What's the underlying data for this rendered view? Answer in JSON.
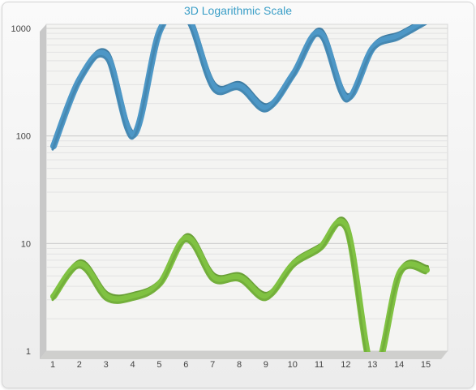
{
  "chart_data": {
    "type": "line",
    "title": "3D Logarithmic Scale",
    "x": [
      1,
      2,
      3,
      4,
      5,
      6,
      7,
      8,
      9,
      10,
      11,
      12,
      13,
      14,
      15
    ],
    "xlabel": "",
    "ylabel": "",
    "y_scale": "log",
    "ylim": [
      1,
      1000
    ],
    "y_ticks": [
      1,
      10,
      100,
      1000
    ],
    "grid": true,
    "style": "3d-ribbon",
    "series": [
      {
        "color": "#4d97c6",
        "values": [
          75,
          320,
          520,
          95,
          900,
          1200,
          270,
          270,
          170,
          350,
          850,
          210,
          620,
          800,
          1100
        ]
      },
      {
        "color": "#80c242",
        "values": [
          3,
          6,
          3,
          3,
          4,
          10.5,
          4.5,
          4.5,
          3,
          6,
          8.5,
          13,
          0.6,
          5,
          5.3
        ]
      }
    ]
  }
}
